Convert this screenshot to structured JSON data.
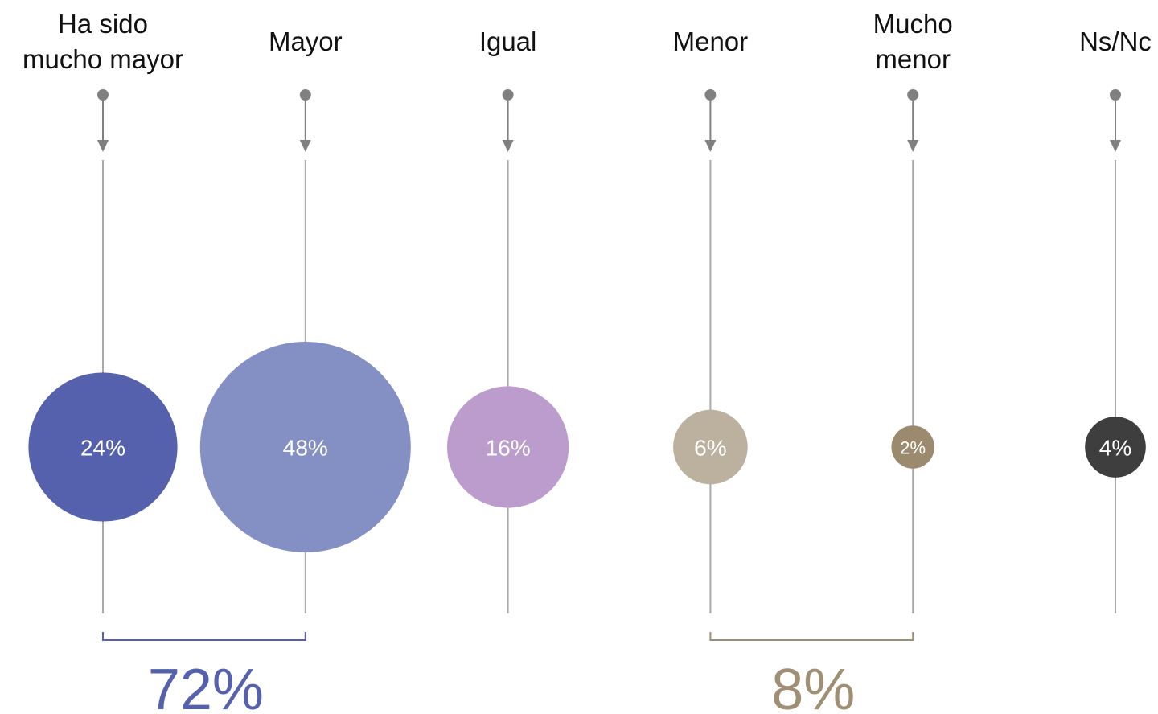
{
  "chart_data": {
    "type": "bubble",
    "categories": [
      "Ha sido\nmucho mayor",
      "Mayor",
      "Igual",
      "Menor",
      "Mucho\nmenor",
      "Ns/Nc"
    ],
    "values": [
      24,
      48,
      16,
      6,
      2,
      4
    ],
    "value_labels": [
      "24%",
      "48%",
      "16%",
      "6%",
      "2%",
      "4%"
    ],
    "colors": [
      "#5561ad",
      "#8490c4",
      "#bc9ccd",
      "#bcb09e",
      "#9c8a6e",
      "#3e3e3e"
    ],
    "groups": [
      {
        "members": [
          0,
          1
        ],
        "value": 72,
        "label": "72%",
        "color": "#5561ad"
      },
      {
        "members": [
          3,
          4
        ],
        "value": 8,
        "label": "8%",
        "color": "#a08f74"
      }
    ]
  }
}
